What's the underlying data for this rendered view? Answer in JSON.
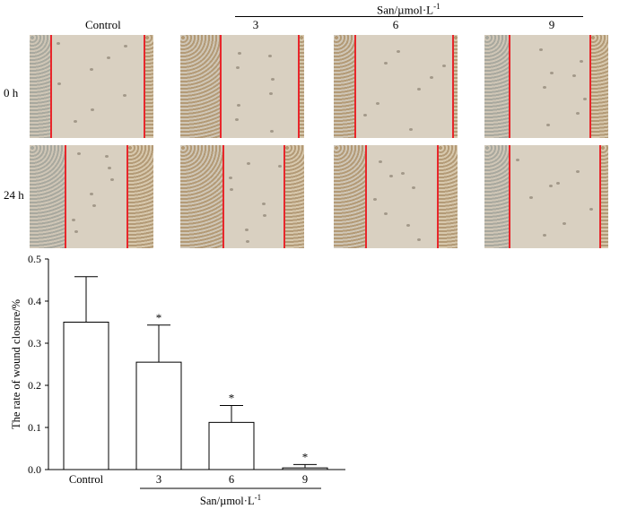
{
  "figure": {
    "column_label_control": "Control",
    "san_label_text": "San/µmol·L",
    "san_label_sup": "-1",
    "concentrations": [
      "3",
      "6",
      "9"
    ],
    "row_labels": [
      "0 h",
      "24 h"
    ],
    "colors": {
      "wound_line": "#e8262b",
      "cell_layer_gray": "#a8a89e",
      "cell_layer_brown": "#b39a76",
      "gap": "#d9d0c1"
    }
  },
  "chart_data": {
    "type": "bar",
    "categories": [
      "Control",
      "3",
      "6",
      "9"
    ],
    "values": [
      0.35,
      0.255,
      0.112,
      0.004
    ],
    "errors": [
      0.108,
      0.088,
      0.04,
      0.008
    ],
    "significance": [
      "",
      "*",
      "*",
      "*"
    ],
    "ylabel": "The rate of wound closure/%",
    "ylim": [
      0,
      0.5
    ],
    "yticks": [
      "0.0",
      "0.1",
      "0.2",
      "0.3",
      "0.4",
      "0.5"
    ],
    "xlabel_text": "San/µmol·L",
    "xlabel_sup": "-1",
    "bar_fill": "#ffffff",
    "bar_stroke": "#000000"
  }
}
